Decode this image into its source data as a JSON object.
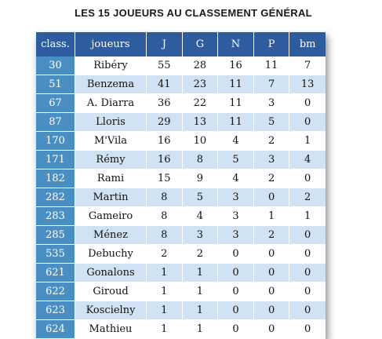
{
  "title": "LES 15 JOUEURS AU CLASSEMENT GÉNÉRAL",
  "headers": [
    "class.",
    "joueurs",
    "J",
    "G",
    "N",
    "P",
    "bm"
  ],
  "rows": [
    {
      "rank": "30",
      "name": "Ribéry",
      "J": "55",
      "G": "28",
      "N": "16",
      "P": "11",
      "bm": "7"
    },
    {
      "rank": "51",
      "name": "Benzema",
      "J": "41",
      "G": "23",
      "N": "11",
      "P": "7",
      "bm": "13"
    },
    {
      "rank": "67",
      "name": "A. Diarra",
      "J": "36",
      "G": "22",
      "N": "11",
      "P": "3",
      "bm": "0"
    },
    {
      "rank": "87",
      "name": "Lloris",
      "J": "29",
      "G": "13",
      "N": "11",
      "P": "5",
      "bm": "0"
    },
    {
      "rank": "170",
      "name": "M'Vila",
      "J": "16",
      "G": "10",
      "N": "4",
      "P": "2",
      "bm": "1"
    },
    {
      "rank": "171",
      "name": "Rémy",
      "J": "16",
      "G": "8",
      "N": "5",
      "P": "3",
      "bm": "4"
    },
    {
      "rank": "182",
      "name": "Rami",
      "J": "15",
      "G": "9",
      "N": "4",
      "P": "2",
      "bm": "0"
    },
    {
      "rank": "282",
      "name": "Martin",
      "J": "8",
      "G": "5",
      "N": "3",
      "P": "0",
      "bm": "2"
    },
    {
      "rank": "283",
      "name": "Gameiro",
      "J": "8",
      "G": "4",
      "N": "3",
      "P": "1",
      "bm": "1"
    },
    {
      "rank": "285",
      "name": "Ménez",
      "J": "8",
      "G": "3",
      "N": "3",
      "P": "2",
      "bm": "0"
    },
    {
      "rank": "535",
      "name": "Debuchy",
      "J": "2",
      "G": "2",
      "N": "0",
      "P": "0",
      "bm": "0"
    },
    {
      "rank": "621",
      "name": "Gonalons",
      "J": "1",
      "G": "1",
      "N": "0",
      "P": "0",
      "bm": "0"
    },
    {
      "rank": "622",
      "name": "Giroud",
      "J": "1",
      "G": "1",
      "N": "0",
      "P": "0",
      "bm": "0"
    },
    {
      "rank": "623",
      "name": "Koscielny",
      "J": "1",
      "G": "1",
      "N": "0",
      "P": "0",
      "bm": "0"
    },
    {
      "rank": "624",
      "name": "Mathieu",
      "J": "1",
      "G": "1",
      "N": "0",
      "P": "0",
      "bm": "0"
    }
  ],
  "colors": {
    "header_bg": "#2e5c9e",
    "rank_bg": "#4a8fc4",
    "stripe_bg": "#cfe3f4"
  }
}
